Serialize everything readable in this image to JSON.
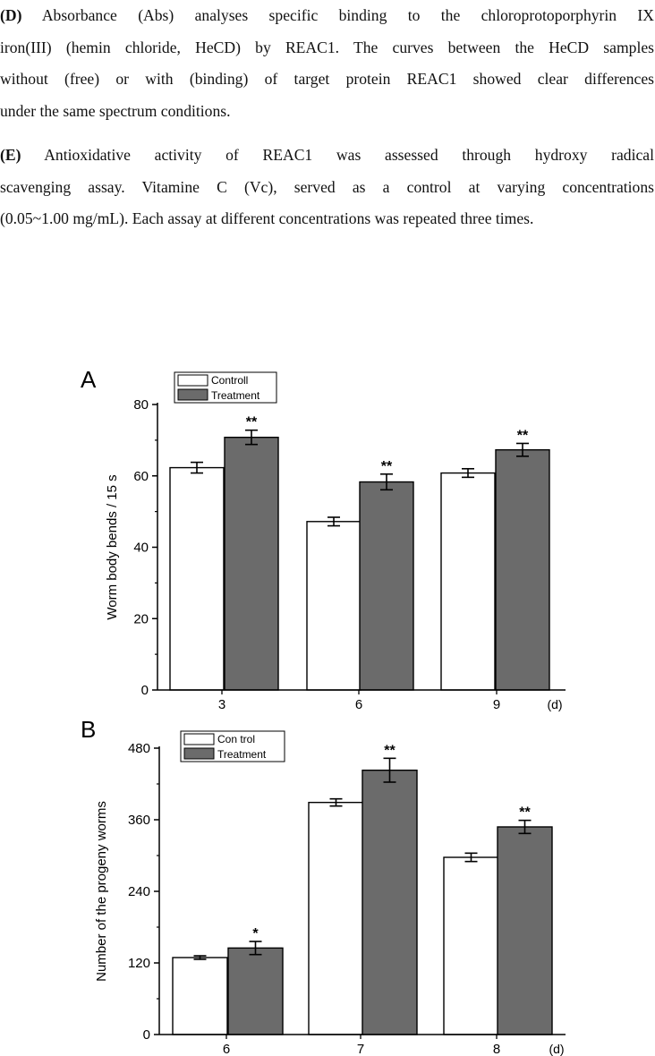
{
  "paragraphs": [
    {
      "label": "(D)",
      "lines": [
        " Absorbance (Abs) analyses specific binding to the chloroprotoporphyrin IX",
        "iron(III) (hemin chloride, HeCD) by REAC1. The curves between the HeCD samples",
        "without (free) or with (binding) of target protein REAC1 showed clear differences",
        "under the same spectrum conditions."
      ]
    },
    {
      "label": "(E)",
      "lines": [
        " Antioxidative activity of REAC1 was assessed through hydroxy radical",
        "scavenging assay. Vitamine C (Vc), served as a control at varying concentrations",
        "(0.05~1.00 mg/mL). Each assay at different concentrations was repeated three times."
      ]
    }
  ],
  "colors": {
    "control": "#ffffff",
    "treatment": "#6b6b6b",
    "axis": "#000000"
  },
  "chart_data": [
    {
      "type": "bar",
      "panel": "A",
      "categories": [
        "3",
        "6",
        "9"
      ],
      "x_unit": "(d)",
      "ylabel": "Worm body bends / 15 s",
      "ylim": [
        0,
        80
      ],
      "yticks": [
        0,
        20,
        40,
        60,
        80
      ],
      "legend": [
        "Controll",
        "Treatment"
      ],
      "legend_position": "top-left",
      "series": [
        {
          "name": "Controll",
          "values": [
            62.3,
            47.2,
            60.8
          ],
          "errors": [
            1.5,
            1.2,
            1.2
          ]
        },
        {
          "name": "Treatment",
          "values": [
            70.8,
            58.3,
            67.3
          ],
          "errors": [
            2.0,
            2.2,
            1.8
          ]
        }
      ],
      "annotations": [
        "**",
        "**",
        "**"
      ]
    },
    {
      "type": "bar",
      "panel": "B",
      "categories": [
        "6",
        "7",
        "8"
      ],
      "x_unit": "(d)",
      "ylabel": "Number of the progeny worms",
      "ylim": [
        0,
        480
      ],
      "yticks": [
        0,
        120,
        240,
        360,
        480
      ],
      "legend": [
        "Con trol",
        "Treatment"
      ],
      "legend_position": "top-left",
      "series": [
        {
          "name": "Con trol",
          "values": [
            129,
            389,
            297
          ],
          "errors": [
            3,
            6,
            7
          ]
        },
        {
          "name": "Treatment",
          "values": [
            145,
            443,
            348
          ],
          "errors": [
            11,
            20,
            11
          ]
        }
      ],
      "annotations": [
        "*",
        "**",
        "**"
      ]
    }
  ]
}
